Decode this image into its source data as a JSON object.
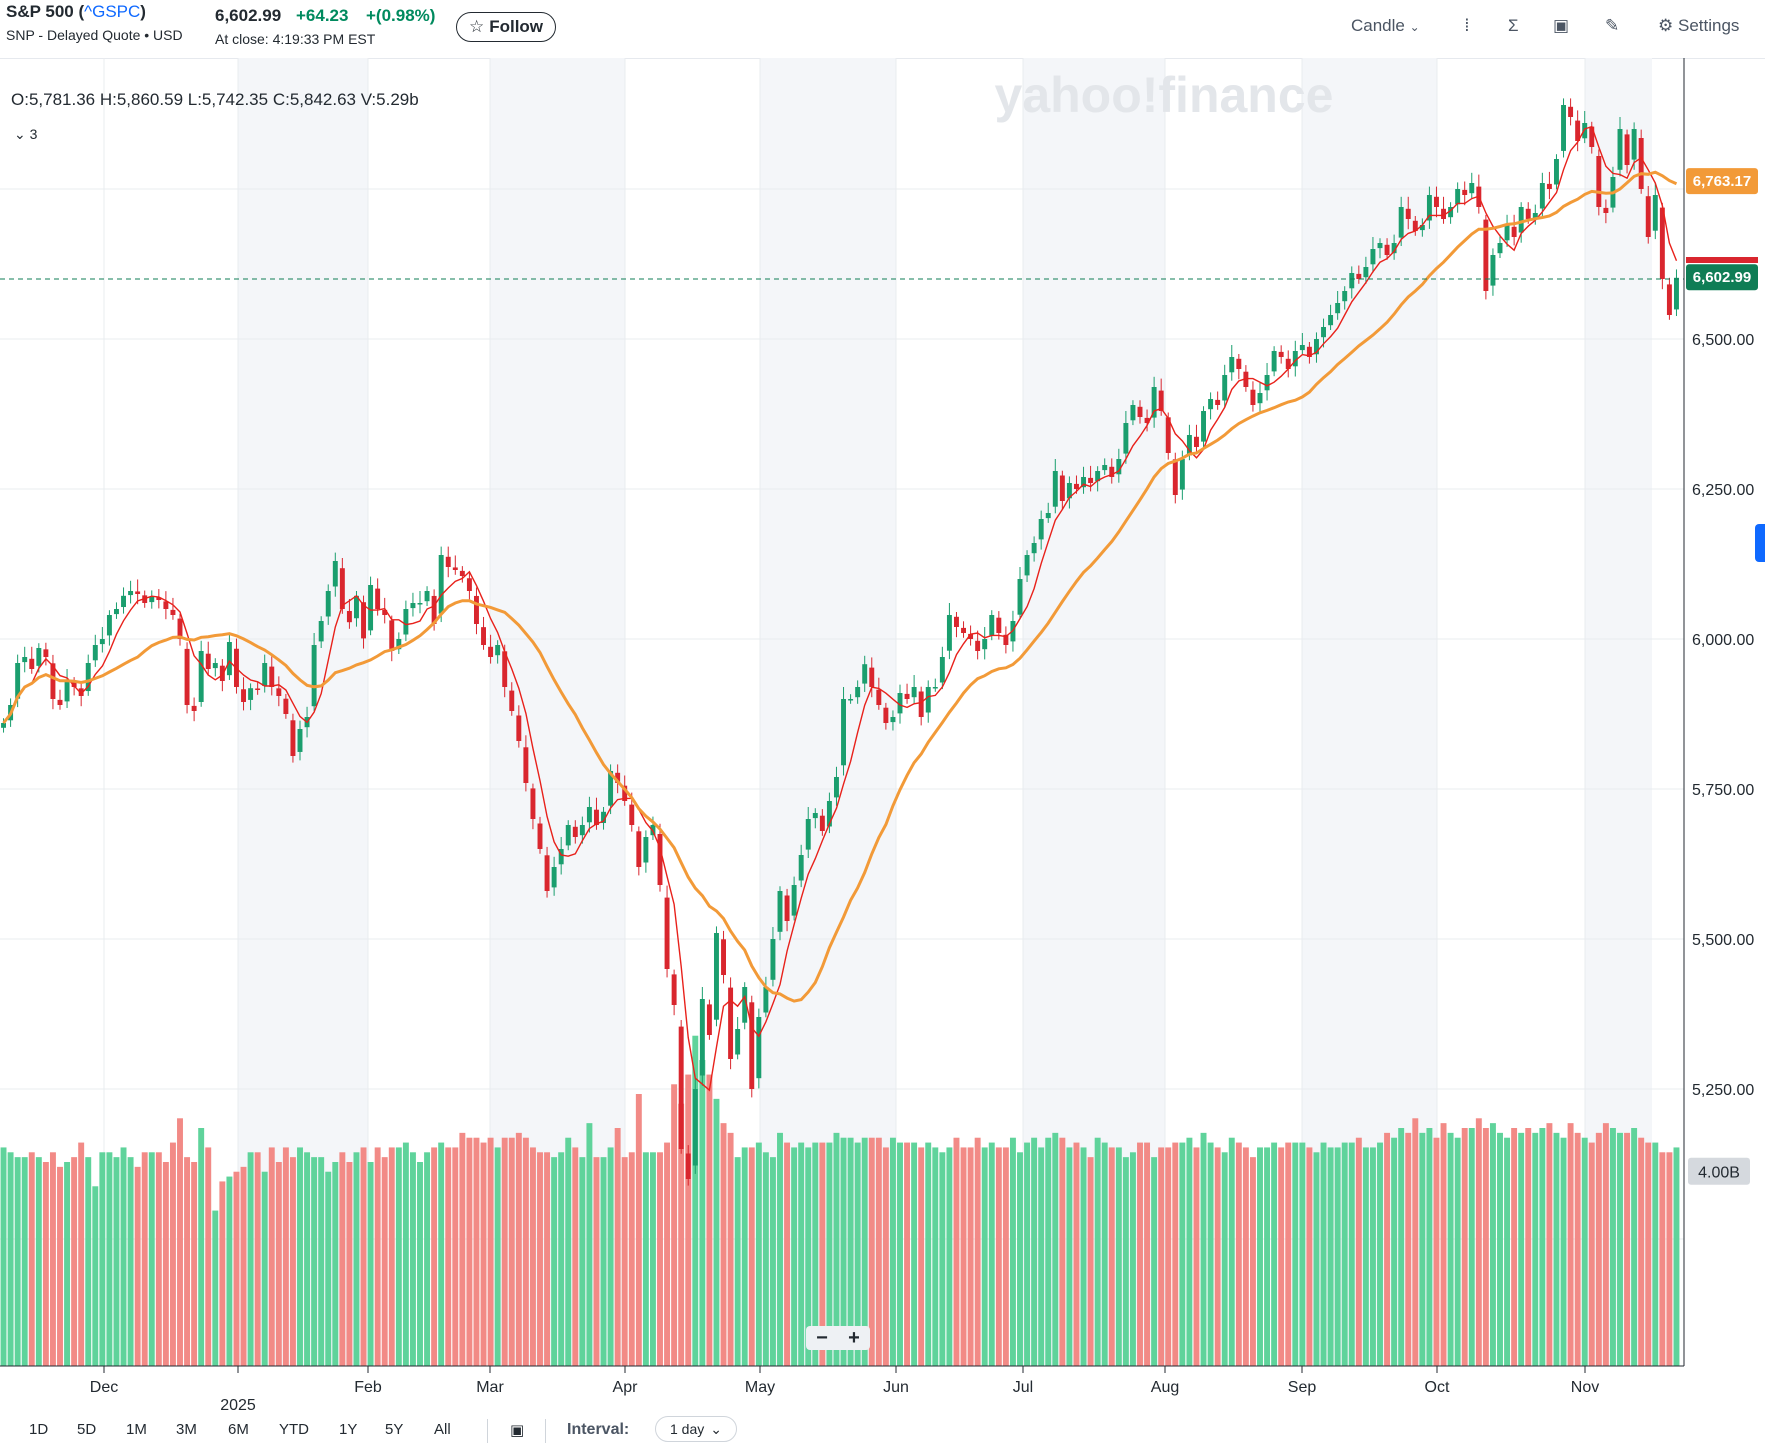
{
  "header": {
    "name": "S&P 500 (",
    "symbol": "^GSPC",
    "name_close": ")",
    "subtitle": "SNP - Delayed Quote • USD",
    "price": "6,602.99",
    "change": "+64.23",
    "change_pct": "+(0.98%)",
    "at_close": "At close: 4:19:33 PM EST",
    "follow_label": "Follow"
  },
  "toolbar": {
    "chart_type": "Candle",
    "settings_label": "Settings"
  },
  "ohlc_bar": {
    "text": "O:5,781.36   H:5,860.59   L:5,742.35   C:5,842.63   V:5.29b",
    "indicators_count": "3"
  },
  "watermark": "yahoo!finance",
  "range_buttons": [
    "1D",
    "5D",
    "1M",
    "3M",
    "6M",
    "YTD",
    "1Y",
    "5Y",
    "All"
  ],
  "interval": {
    "label": "Interval:",
    "value": "1 day"
  },
  "colors": {
    "up": "#1a9e6e",
    "down": "#d9262e",
    "ma_short": "#e8211b",
    "ma_long": "#f29a38",
    "vol_up": "#5fd39b",
    "vol_down": "#f28a86",
    "band": "#f4f6f9"
  },
  "chart_data": {
    "type": "candlestick",
    "y_ticks": [
      "6,500.00",
      "6,250.00",
      "6,000.00",
      "5,750.00",
      "5,500.00",
      "5,250.00"
    ],
    "ylim": [
      5100,
      6980
    ],
    "x_labels": [
      "Dec",
      "2025",
      "Feb",
      "Mar",
      "Apr",
      "May",
      "Jun",
      "Jul",
      "Aug",
      "Sep",
      "Oct",
      "Nov"
    ],
    "price_labels": [
      {
        "value": 6763.17,
        "text": "6,763.17",
        "color": "#f29a38"
      },
      {
        "value": 6602.99,
        "text": "6,602.99",
        "color": "#0f7d55"
      }
    ],
    "volume_label": "4.00B",
    "series": [
      {
        "name": "Close",
        "values": [
          5860,
          5890,
          5960,
          5970,
          5950,
          5985,
          5970,
          5900,
          5890,
          5930,
          5920,
          5905,
          5960,
          5990,
          6000,
          6040,
          6050,
          6072,
          6080,
          6075,
          6060,
          6070,
          6065,
          6050,
          6040,
          6000,
          5890,
          5880,
          5980,
          5950,
          5960,
          5930,
          5995,
          5920,
          5895,
          5918,
          5915,
          5960,
          5920,
          5905,
          5875,
          5805,
          5850,
          5870,
          5990,
          6030,
          6080,
          6130,
          6050,
          6028,
          6072,
          6001,
          6090,
          6050,
          6040,
          5980,
          6000,
          6050,
          6060,
          6060,
          6080,
          6025,
          6140,
          6120,
          6115,
          6105,
          6080,
          6025,
          5990,
          5970,
          5990,
          5920,
          5880,
          5830,
          5760,
          5700,
          5650,
          5580,
          5620,
          5650,
          5690,
          5670,
          5690,
          5720,
          5690,
          5712,
          5780,
          5760,
          5730,
          5690,
          5620,
          5670,
          5690,
          5590,
          5450,
          5390,
          5150,
          5100,
          5250,
          5400,
          5340,
          5510,
          5440,
          5300,
          5350,
          5420,
          5250,
          5370,
          5420,
          5500,
          5580,
          5530,
          5590,
          5640,
          5700,
          5710,
          5680,
          5730,
          5770,
          5900,
          5900,
          5920,
          5958,
          5920,
          5890,
          5860,
          5870,
          5910,
          5900,
          5920,
          5870,
          5920,
          5920,
          5970,
          6040,
          6020,
          6010,
          6000,
          5980,
          6000,
          6040,
          6010,
          5990,
          6030,
          6100,
          6140,
          6160,
          6200,
          6210,
          6280,
          6230,
          6260,
          6250,
          6270,
          6260,
          6280,
          6290,
          6270,
          6300,
          6360,
          6390,
          6370,
          6360,
          6420,
          6380,
          6310,
          6240,
          6300,
          6340,
          6320,
          6380,
          6400,
          6390,
          6440,
          6470,
          6450,
          6420,
          6390,
          6410,
          6440,
          6480,
          6470,
          6450,
          6480,
          6490,
          6470,
          6500,
          6520,
          6540,
          6560,
          6580,
          6610,
          6600,
          6620,
          6650,
          6660,
          6640,
          6660,
          6720,
          6700,
          6680,
          6690,
          6740,
          6720,
          6700,
          6720,
          6750,
          6740,
          6760,
          6720,
          6580,
          6640,
          6660,
          6690,
          6670,
          6720,
          6700,
          6710,
          6760,
          6750,
          6800,
          6890,
          6870,
          6830,
          6860,
          6820,
          6720,
          6710,
          6770,
          6850,
          6790,
          6850,
          6750,
          6670,
          6740,
          6600,
          6540,
          6602
        ]
      },
      {
        "name": "Volume (B)",
        "values": [
          4.5,
          4.4,
          4.3,
          4.3,
          4.4,
          4.3,
          4.2,
          4.4,
          4.1,
          4.2,
          4.3,
          4.6,
          4.3,
          3.7,
          4.4,
          4.4,
          4.3,
          4.5,
          4.3,
          4.1,
          4.4,
          4.4,
          4.4,
          4.2,
          4.6,
          5.1,
          4.3,
          4.2,
          4.9,
          4.5,
          3.2,
          3.8,
          3.9,
          4.0,
          4.1,
          4.4,
          4.4,
          4.0,
          4.5,
          4.2,
          4.5,
          4.3,
          4.5,
          4.4,
          4.3,
          4.3,
          4.0,
          4.2,
          4.4,
          4.2,
          4.4,
          4.5,
          4.2,
          4.5,
          4.3,
          4.5,
          4.5,
          4.6,
          4.4,
          4.2,
          4.4,
          4.5,
          4.6,
          4.5,
          4.5,
          4.8,
          4.7,
          4.7,
          4.6,
          4.7,
          4.5,
          4.7,
          4.7,
          4.8,
          4.7,
          4.5,
          4.4,
          4.4,
          4.3,
          4.4,
          4.7,
          4.5,
          4.3,
          5.0,
          4.3,
          4.3,
          4.5,
          4.9,
          4.3,
          4.4,
          5.6,
          4.4,
          4.4,
          4.4,
          4.6,
          5.8,
          5.4,
          6.0,
          6.8,
          6.3,
          6.0,
          5.5,
          5.0,
          4.8,
          4.3,
          4.5,
          4.5,
          4.6,
          4.4,
          4.3,
          4.8,
          4.6,
          4.5,
          4.6,
          4.5,
          4.6,
          4.6,
          4.6,
          4.8,
          4.7,
          4.7,
          4.6,
          4.7,
          4.7,
          4.7,
          4.5,
          4.7,
          4.6,
          4.6,
          4.6,
          4.5,
          4.6,
          4.5,
          4.4,
          4.5,
          4.7,
          4.5,
          4.5,
          4.7,
          4.5,
          4.6,
          4.5,
          4.5,
          4.7,
          4.4,
          4.6,
          4.7,
          4.5,
          4.7,
          4.8,
          4.7,
          4.5,
          4.6,
          4.5,
          4.3,
          4.7,
          4.6,
          4.5,
          4.5,
          4.3,
          4.4,
          4.6,
          4.6,
          4.3,
          4.5,
          4.5,
          4.6,
          4.6,
          4.7,
          4.5,
          4.8,
          4.6,
          4.5,
          4.4,
          4.7,
          4.6,
          4.5,
          4.3,
          4.5,
          4.5,
          4.6,
          4.5,
          4.6,
          4.6,
          4.6,
          4.5,
          4.4,
          4.6,
          4.5,
          4.5,
          4.6,
          4.6,
          4.7,
          4.5,
          4.5,
          4.6,
          4.8,
          4.7,
          4.9,
          4.8,
          5.1,
          4.8,
          4.9,
          4.7,
          5.0,
          4.8,
          4.7,
          4.9,
          4.9,
          5.1,
          4.9,
          5.0,
          4.8,
          4.7,
          4.9,
          4.8,
          4.9,
          4.8,
          4.9,
          5.0,
          4.8,
          4.7,
          5.0,
          4.8,
          4.7,
          4.6,
          4.8,
          5.0,
          4.9,
          4.8,
          4.8,
          4.9,
          4.7,
          4.6,
          4.6,
          4.4,
          4.4,
          4.5
        ]
      }
    ],
    "moving_averages": [
      {
        "period": 5
      },
      {
        "period": 20
      }
    ]
  }
}
